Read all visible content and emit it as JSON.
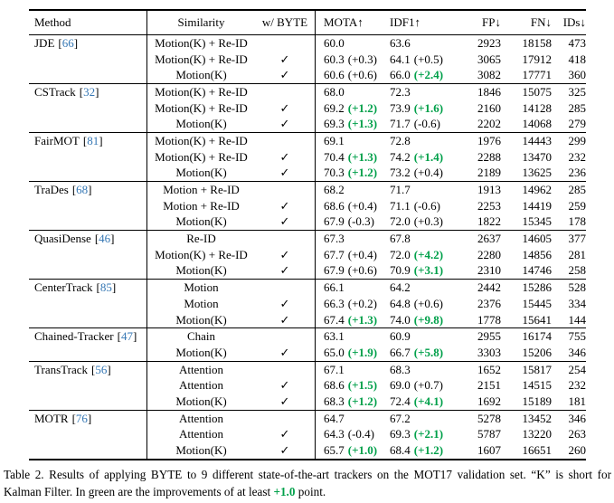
{
  "table": {
    "cite_open": "[",
    "cite_close": "]",
    "header": {
      "method": "Method",
      "similarity": "Similarity",
      "byte": "w/ BYTE",
      "mota": "MOTA↑",
      "idf1": "IDF1↑",
      "fp": "FP↓",
      "fn": "FN↓",
      "ids": "IDs↓"
    },
    "groups": [
      {
        "method": "JDE",
        "cite": "66",
        "rows": [
          {
            "sim": "Motion(K) + Re-ID",
            "byte": "",
            "mota": "60.0",
            "mota_d": "",
            "mota_g": false,
            "idf1": "63.6",
            "idf1_d": "",
            "idf1_g": false,
            "fp": "2923",
            "fn": "18158",
            "ids": "473"
          },
          {
            "sim": "Motion(K) + Re-ID",
            "byte": "✓",
            "mota": "60.3",
            "mota_d": "(+0.3)",
            "mota_g": false,
            "idf1": "64.1",
            "idf1_d": "(+0.5)",
            "idf1_g": false,
            "fp": "3065",
            "fn": "17912",
            "ids": "418"
          },
          {
            "sim": "Motion(K)",
            "byte": "✓",
            "mota": "60.6",
            "mota_d": "(+0.6)",
            "mota_g": false,
            "idf1": "66.0",
            "idf1_d": "(+2.4)",
            "idf1_g": true,
            "fp": "3082",
            "fn": "17771",
            "ids": "360"
          }
        ]
      },
      {
        "method": "CSTrack",
        "cite": "32",
        "rows": [
          {
            "sim": "Motion(K) + Re-ID",
            "byte": "",
            "mota": "68.0",
            "mota_d": "",
            "mota_g": false,
            "idf1": "72.3",
            "idf1_d": "",
            "idf1_g": false,
            "fp": "1846",
            "fn": "15075",
            "ids": "325"
          },
          {
            "sim": "Motion(K) + Re-ID",
            "byte": "✓",
            "mota": "69.2",
            "mota_d": "(+1.2)",
            "mota_g": true,
            "idf1": "73.9",
            "idf1_d": "(+1.6)",
            "idf1_g": true,
            "fp": "2160",
            "fn": "14128",
            "ids": "285"
          },
          {
            "sim": "Motion(K)",
            "byte": "✓",
            "mota": "69.3",
            "mota_d": "(+1.3)",
            "mota_g": true,
            "idf1": "71.7",
            "idf1_d": "(-0.6)",
            "idf1_g": false,
            "fp": "2202",
            "fn": "14068",
            "ids": "279"
          }
        ]
      },
      {
        "method": "FairMOT",
        "cite": "81",
        "rows": [
          {
            "sim": "Motion(K) + Re-ID",
            "byte": "",
            "mota": "69.1",
            "mota_d": "",
            "mota_g": false,
            "idf1": "72.8",
            "idf1_d": "",
            "idf1_g": false,
            "fp": "1976",
            "fn": "14443",
            "ids": "299"
          },
          {
            "sim": "Motion(K) + Re-ID",
            "byte": "✓",
            "mota": "70.4",
            "mota_d": "(+1.3)",
            "mota_g": true,
            "idf1": "74.2",
            "idf1_d": "(+1.4)",
            "idf1_g": true,
            "fp": "2288",
            "fn": "13470",
            "ids": "232"
          },
          {
            "sim": "Motion(K)",
            "byte": "✓",
            "mota": "70.3",
            "mota_d": "(+1.2)",
            "mota_g": true,
            "idf1": "73.2",
            "idf1_d": "(+0.4)",
            "idf1_g": false,
            "fp": "2189",
            "fn": "13625",
            "ids": "236"
          }
        ]
      },
      {
        "method": "TraDes",
        "cite": "68",
        "rows": [
          {
            "sim": "Motion + Re-ID",
            "byte": "",
            "mota": "68.2",
            "mota_d": "",
            "mota_g": false,
            "idf1": "71.7",
            "idf1_d": "",
            "idf1_g": false,
            "fp": "1913",
            "fn": "14962",
            "ids": "285"
          },
          {
            "sim": "Motion + Re-ID",
            "byte": "✓",
            "mota": "68.6",
            "mota_d": "(+0.4)",
            "mota_g": false,
            "idf1": "71.1",
            "idf1_d": "(-0.6)",
            "idf1_g": false,
            "fp": "2253",
            "fn": "14419",
            "ids": "259"
          },
          {
            "sim": "Motion(K)",
            "byte": "✓",
            "mota": "67.9",
            "mota_d": "(-0.3)",
            "mota_g": false,
            "idf1": "72.0",
            "idf1_d": "(+0.3)",
            "idf1_g": false,
            "fp": "1822",
            "fn": "15345",
            "ids": "178"
          }
        ]
      },
      {
        "method": "QuasiDense",
        "cite": "46",
        "rows": [
          {
            "sim": "Re-ID",
            "byte": "",
            "mota": "67.3",
            "mota_d": "",
            "mota_g": false,
            "idf1": "67.8",
            "idf1_d": "",
            "idf1_g": false,
            "fp": "2637",
            "fn": "14605",
            "ids": "377"
          },
          {
            "sim": "Motion(K) + Re-ID",
            "byte": "✓",
            "mota": "67.7",
            "mota_d": "(+0.4)",
            "mota_g": false,
            "idf1": "72.0",
            "idf1_d": "(+4.2)",
            "idf1_g": true,
            "fp": "2280",
            "fn": "14856",
            "ids": "281"
          },
          {
            "sim": "Motion(K)",
            "byte": "✓",
            "mota": "67.9",
            "mota_d": "(+0.6)",
            "mota_g": false,
            "idf1": "70.9",
            "idf1_d": "(+3.1)",
            "idf1_g": true,
            "fp": "2310",
            "fn": "14746",
            "ids": "258"
          }
        ]
      },
      {
        "method": "CenterTrack",
        "cite": "85",
        "rows": [
          {
            "sim": "Motion",
            "byte": "",
            "mota": "66.1",
            "mota_d": "",
            "mota_g": false,
            "idf1": "64.2",
            "idf1_d": "",
            "idf1_g": false,
            "fp": "2442",
            "fn": "15286",
            "ids": "528"
          },
          {
            "sim": "Motion",
            "byte": "✓",
            "mota": "66.3",
            "mota_d": "(+0.2)",
            "mota_g": false,
            "idf1": "64.8",
            "idf1_d": "(+0.6)",
            "idf1_g": false,
            "fp": "2376",
            "fn": "15445",
            "ids": "334"
          },
          {
            "sim": "Motion(K)",
            "byte": "✓",
            "mota": "67.4",
            "mota_d": "(+1.3)",
            "mota_g": true,
            "idf1": "74.0",
            "idf1_d": "(+9.8)",
            "idf1_g": true,
            "fp": "1778",
            "fn": "15641",
            "ids": "144"
          }
        ]
      },
      {
        "method": "Chained-Tracker",
        "cite": "47",
        "rows": [
          {
            "sim": "Chain",
            "byte": "",
            "mota": "63.1",
            "mota_d": "",
            "mota_g": false,
            "idf1": "60.9",
            "idf1_d": "",
            "idf1_g": false,
            "fp": "2955",
            "fn": "16174",
            "ids": "755"
          },
          {
            "sim": "Motion(K)",
            "byte": "✓",
            "mota": "65.0",
            "mota_d": "(+1.9)",
            "mota_g": true,
            "idf1": "66.7",
            "idf1_d": "(+5.8)",
            "idf1_g": true,
            "fp": "3303",
            "fn": "15206",
            "ids": "346"
          }
        ]
      },
      {
        "method": "TransTrack",
        "cite": "56",
        "rows": [
          {
            "sim": "Attention",
            "byte": "",
            "mota": "67.1",
            "mota_d": "",
            "mota_g": false,
            "idf1": "68.3",
            "idf1_d": "",
            "idf1_g": false,
            "fp": "1652",
            "fn": "15817",
            "ids": "254"
          },
          {
            "sim": "Attention",
            "byte": "✓",
            "mota": "68.6",
            "mota_d": "(+1.5)",
            "mota_g": true,
            "idf1": "69.0",
            "idf1_d": "(+0.7)",
            "idf1_g": false,
            "fp": "2151",
            "fn": "14515",
            "ids": "232"
          },
          {
            "sim": "Motion(K)",
            "byte": "✓",
            "mota": "68.3",
            "mota_d": "(+1.2)",
            "mota_g": true,
            "idf1": "72.4",
            "idf1_d": "(+4.1)",
            "idf1_g": true,
            "fp": "1692",
            "fn": "15189",
            "ids": "181"
          }
        ]
      },
      {
        "method": "MOTR",
        "cite": "76",
        "rows": [
          {
            "sim": "Attention",
            "byte": "",
            "mota": "64.7",
            "mota_d": "",
            "mota_g": false,
            "idf1": "67.2",
            "idf1_d": "",
            "idf1_g": false,
            "fp": "5278",
            "fn": "13452",
            "ids": "346"
          },
          {
            "sim": "Attention",
            "byte": "✓",
            "mota": "64.3",
            "mota_d": "(-0.4)",
            "mota_g": false,
            "idf1": "69.3",
            "idf1_d": "(+2.1)",
            "idf1_g": true,
            "fp": "5787",
            "fn": "13220",
            "ids": "263"
          },
          {
            "sim": "Motion(K)",
            "byte": "✓",
            "mota": "65.7",
            "mota_d": "(+1.0)",
            "mota_g": true,
            "idf1": "68.4",
            "idf1_d": "(+1.2)",
            "idf1_g": true,
            "fp": "1607",
            "fn": "16651",
            "ids": "260"
          }
        ]
      }
    ]
  },
  "caption": {
    "prefix": "Table 2. Results of applying BYTE to 9 different state-of-the-art trackers on the MOT17 validation set. “K” is short for Kalman Filter. In green are the improvements of at least ",
    "highlight": "+1.0",
    "suffix": " point."
  },
  "colors": {
    "green": "#00a04a",
    "citation_blue": "#3577b4"
  }
}
